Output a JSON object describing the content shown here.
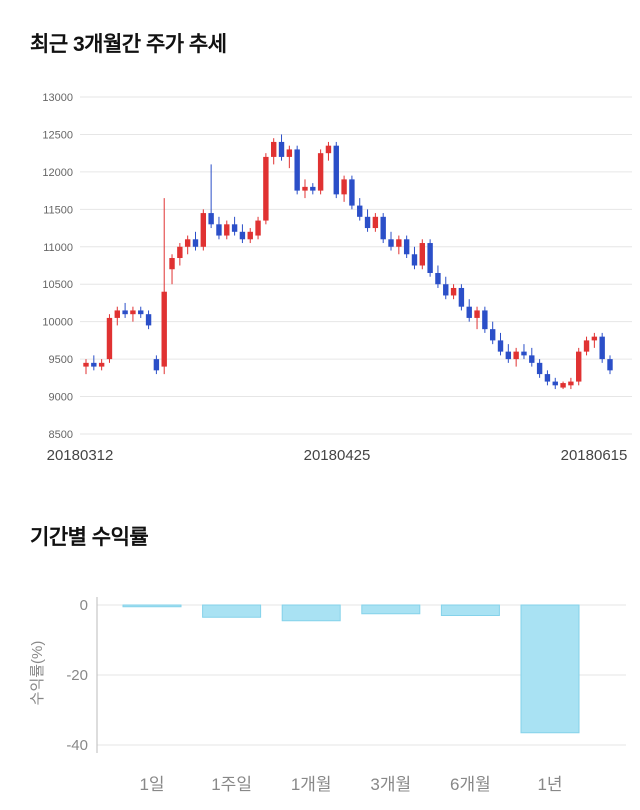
{
  "page": {
    "section1_title": "최근 3개월간 주가 추세",
    "section2_title": "기간별 수익률"
  },
  "colors": {
    "up": "#e03232",
    "down": "#2b4fc8",
    "bar_fill": "#a9e2f3",
    "bar_stroke": "#84d2ea",
    "grid": "#e6e6e6",
    "axis": "#bbbbbb",
    "tick_text": "#666666",
    "date_text": "#444444",
    "bar_tick_text": "#888888"
  },
  "chart_data": [
    {
      "type": "candlestick",
      "title": "최근 3개월간 주가 추세",
      "ylim": [
        8500,
        13000
      ],
      "yticks": [
        8500,
        9000,
        9500,
        10000,
        10500,
        11000,
        11500,
        12000,
        12500,
        13000
      ],
      "xlabels": [
        "20180312",
        "20180425",
        "20180615"
      ],
      "grid": "horizontal",
      "candles_format": [
        "open",
        "high",
        "low",
        "close"
      ],
      "candles": [
        [
          9400,
          9500,
          9300,
          9450
        ],
        [
          9450,
          9550,
          9350,
          9400
        ],
        [
          9400,
          9500,
          9350,
          9450
        ],
        [
          9500,
          10100,
          9450,
          10050
        ],
        [
          10050,
          10200,
          9950,
          10150
        ],
        [
          10150,
          10250,
          10050,
          10100
        ],
        [
          10100,
          10200,
          10000,
          10150
        ],
        [
          10150,
          10200,
          10050,
          10100
        ],
        [
          10100,
          10150,
          9900,
          9950
        ],
        [
          9500,
          9550,
          9300,
          9350
        ],
        [
          9400,
          11650,
          9300,
          10400
        ],
        [
          10700,
          10900,
          10500,
          10850
        ],
        [
          10850,
          11050,
          10750,
          11000
        ],
        [
          11000,
          11150,
          10900,
          11100
        ],
        [
          11100,
          11200,
          10950,
          11000
        ],
        [
          11000,
          11500,
          10950,
          11450
        ],
        [
          11450,
          12100,
          11250,
          11300
        ],
        [
          11300,
          11400,
          11100,
          11150
        ],
        [
          11150,
          11350,
          11100,
          11300
        ],
        [
          11300,
          11400,
          11150,
          11200
        ],
        [
          11200,
          11300,
          11050,
          11100
        ],
        [
          11100,
          11250,
          11050,
          11200
        ],
        [
          11150,
          11400,
          11100,
          11350
        ],
        [
          11350,
          12250,
          11300,
          12200
        ],
        [
          12200,
          12450,
          12100,
          12400
        ],
        [
          12400,
          12500,
          12150,
          12200
        ],
        [
          12200,
          12350,
          12050,
          12300
        ],
        [
          12300,
          12350,
          11700,
          11750
        ],
        [
          11750,
          11900,
          11650,
          11800
        ],
        [
          11800,
          11850,
          11700,
          11750
        ],
        [
          11750,
          12300,
          11700,
          12250
        ],
        [
          12250,
          12400,
          12150,
          12350
        ],
        [
          12350,
          12400,
          11650,
          11700
        ],
        [
          11700,
          11950,
          11600,
          11900
        ],
        [
          11900,
          11950,
          11500,
          11550
        ],
        [
          11550,
          11650,
          11350,
          11400
        ],
        [
          11400,
          11500,
          11200,
          11250
        ],
        [
          11250,
          11450,
          11200,
          11400
        ],
        [
          11400,
          11450,
          11050,
          11100
        ],
        [
          11100,
          11200,
          10950,
          11000
        ],
        [
          11000,
          11150,
          10900,
          11100
        ],
        [
          11100,
          11150,
          10850,
          10900
        ],
        [
          10900,
          11000,
          10700,
          10750
        ],
        [
          10750,
          11100,
          10700,
          11050
        ],
        [
          11050,
          11100,
          10600,
          10650
        ],
        [
          10650,
          10750,
          10450,
          10500
        ],
        [
          10500,
          10600,
          10300,
          10350
        ],
        [
          10350,
          10500,
          10300,
          10450
        ],
        [
          10450,
          10500,
          10150,
          10200
        ],
        [
          10200,
          10300,
          10000,
          10050
        ],
        [
          10050,
          10200,
          9900,
          10150
        ],
        [
          10150,
          10200,
          9850,
          9900
        ],
        [
          9900,
          10000,
          9700,
          9750
        ],
        [
          9750,
          9850,
          9550,
          9600
        ],
        [
          9600,
          9700,
          9450,
          9500
        ],
        [
          9500,
          9650,
          9400,
          9600
        ],
        [
          9600,
          9700,
          9500,
          9550
        ],
        [
          9550,
          9650,
          9400,
          9450
        ],
        [
          9450,
          9500,
          9250,
          9300
        ],
        [
          9300,
          9350,
          9150,
          9200
        ],
        [
          9200,
          9250,
          9100,
          9150
        ],
        [
          9120,
          9200,
          9100,
          9180
        ],
        [
          9150,
          9250,
          9100,
          9200
        ],
        [
          9200,
          9650,
          9150,
          9600
        ],
        [
          9600,
          9800,
          9550,
          9750
        ],
        [
          9750,
          9850,
          9650,
          9800
        ],
        [
          9800,
          9850,
          9450,
          9500
        ],
        [
          9500,
          9550,
          9300,
          9350
        ]
      ]
    },
    {
      "type": "bar",
      "title": "기간별 수익률",
      "ylabel": "수익률(%)",
      "categories": [
        "1일",
        "1주일",
        "1개월",
        "3개월",
        "6개월",
        "1년"
      ],
      "values": [
        -0.5,
        -3.5,
        -4.5,
        -2.5,
        -3,
        -36.5
      ],
      "yticks": [
        0,
        -20,
        -40
      ],
      "ylim": [
        0,
        -40
      ],
      "grid": "horizontal",
      "legend": "none"
    }
  ]
}
